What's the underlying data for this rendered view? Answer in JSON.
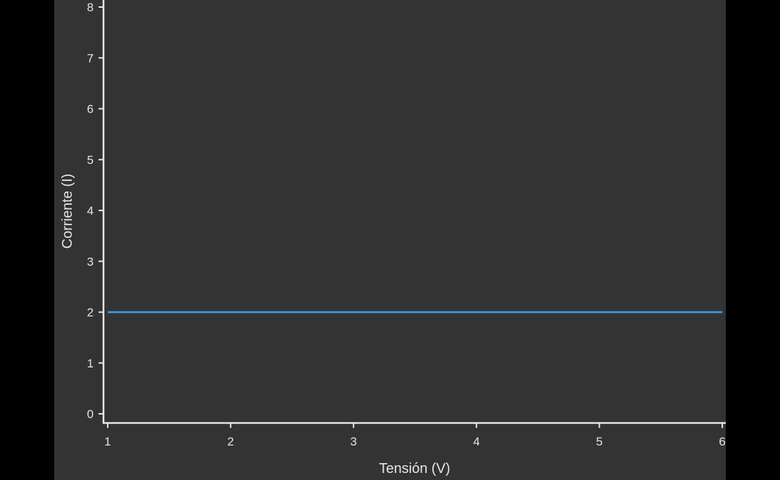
{
  "chart_data": {
    "type": "line",
    "title": "",
    "xlabel": "Tensión (V)",
    "ylabel": "Corriente (I)",
    "xlim": [
      1,
      6
    ],
    "ylim": [
      0,
      8
    ],
    "x_ticks": [
      1,
      2,
      3,
      4,
      5,
      6
    ],
    "y_ticks": [
      0,
      1,
      2,
      3,
      4,
      5,
      6,
      7,
      8
    ],
    "grid": false,
    "legend": "none",
    "series": [
      {
        "x": [
          1,
          2,
          3,
          4,
          5,
          6
        ],
        "values": [
          2,
          2,
          2,
          2,
          2,
          2
        ],
        "color": "#3a8fd6"
      }
    ],
    "colors": {
      "background": "#333333",
      "axis": "#e6e6e6",
      "text": "#e6e6e6"
    }
  }
}
